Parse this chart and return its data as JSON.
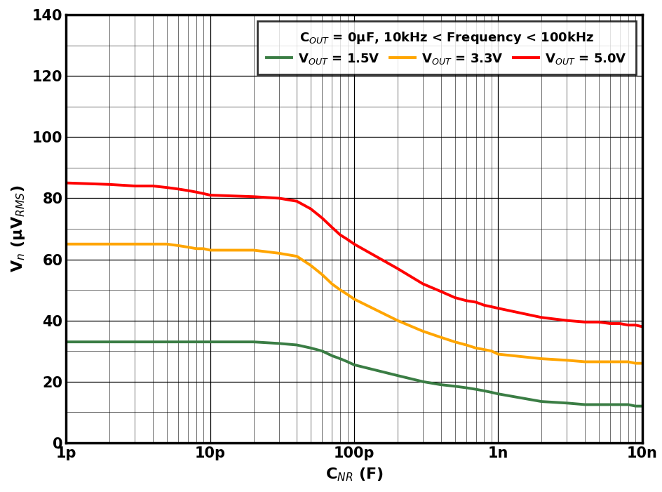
{
  "xmin": 1e-12,
  "xmax": 1e-08,
  "ymin": 0,
  "ymax": 140,
  "yticks": [
    0,
    20,
    40,
    60,
    80,
    100,
    120,
    140
  ],
  "xtick_positions": [
    1e-12,
    1e-11,
    1e-10,
    1e-09,
    1e-08
  ],
  "xtick_labels": [
    "1p",
    "10p",
    "100p",
    "1n",
    "10n"
  ],
  "color_15V": "#3a7d44",
  "color_33V": "#ffa500",
  "color_50V": "#ff0000",
  "line_width": 2.8,
  "bg_color": "#ffffff",
  "xlabel": "C$_{NR}$ (F)",
  "ylabel": "V$_{n}$ (μV$_{RMS}$)",
  "legend_title": "C$_{OUT}$ = 0μF, 10kHz < Frequency < 100kHz",
  "legend_labels": [
    "V$_{OUT}$ = 1.5V",
    "V$_{OUT}$ = 3.3V",
    "V$_{OUT}$ = 5.0V"
  ],
  "curve_1p5V": {
    "x": [
      1e-12,
      2e-12,
      3e-12,
      4e-12,
      5e-12,
      6e-12,
      7e-12,
      8e-12,
      9e-12,
      1e-11,
      2e-11,
      3e-11,
      4e-11,
      5e-11,
      6e-11,
      7e-11,
      8e-11,
      9e-11,
      1e-10,
      2e-10,
      3e-10,
      4e-10,
      5e-10,
      6e-10,
      7e-10,
      8e-10,
      9e-10,
      1e-09,
      2e-09,
      3e-09,
      4e-09,
      5e-09,
      6e-09,
      7e-09,
      8e-09,
      9e-09,
      1e-08
    ],
    "y": [
      33.0,
      33.0,
      33.0,
      33.0,
      33.0,
      33.0,
      33.0,
      33.0,
      33.0,
      33.0,
      33.0,
      32.5,
      32.0,
      31.0,
      30.0,
      28.5,
      27.5,
      26.5,
      25.5,
      22.0,
      20.0,
      19.0,
      18.5,
      18.0,
      17.5,
      17.0,
      16.5,
      16.0,
      13.5,
      13.0,
      12.5,
      12.5,
      12.5,
      12.5,
      12.5,
      12.0,
      12.0
    ]
  },
  "curve_3p3V": {
    "x": [
      1e-12,
      2e-12,
      3e-12,
      4e-12,
      5e-12,
      6e-12,
      7e-12,
      8e-12,
      9e-12,
      1e-11,
      2e-11,
      3e-11,
      4e-11,
      5e-11,
      6e-11,
      7e-11,
      8e-11,
      9e-11,
      1e-10,
      2e-10,
      3e-10,
      4e-10,
      5e-10,
      6e-10,
      7e-10,
      8e-10,
      9e-10,
      1e-09,
      2e-09,
      3e-09,
      4e-09,
      5e-09,
      6e-09,
      7e-09,
      8e-09,
      9e-09,
      1e-08
    ],
    "y": [
      65.0,
      65.0,
      65.0,
      65.0,
      65.0,
      64.5,
      64.0,
      63.5,
      63.5,
      63.0,
      63.0,
      62.0,
      61.0,
      58.0,
      55.0,
      52.0,
      50.0,
      48.5,
      47.0,
      40.0,
      36.5,
      34.5,
      33.0,
      32.0,
      31.0,
      30.5,
      30.0,
      29.0,
      27.5,
      27.0,
      26.5,
      26.5,
      26.5,
      26.5,
      26.5,
      26.0,
      26.0
    ]
  },
  "curve_5p0V": {
    "x": [
      1e-12,
      2e-12,
      3e-12,
      4e-12,
      5e-12,
      6e-12,
      7e-12,
      8e-12,
      9e-12,
      1e-11,
      2e-11,
      3e-11,
      4e-11,
      5e-11,
      6e-11,
      7e-11,
      8e-11,
      9e-11,
      1e-10,
      2e-10,
      3e-10,
      4e-10,
      5e-10,
      6e-10,
      7e-10,
      8e-10,
      9e-10,
      1e-09,
      2e-09,
      3e-09,
      4e-09,
      5e-09,
      6e-09,
      7e-09,
      8e-09,
      9e-09,
      1e-08
    ],
    "y": [
      85.0,
      84.5,
      84.0,
      84.0,
      83.5,
      83.0,
      82.5,
      82.0,
      81.5,
      81.0,
      80.5,
      80.0,
      79.0,
      76.5,
      73.5,
      70.5,
      68.0,
      66.5,
      65.0,
      57.0,
      52.0,
      49.5,
      47.5,
      46.5,
      46.0,
      45.0,
      44.5,
      44.0,
      41.0,
      40.0,
      39.5,
      39.5,
      39.0,
      39.0,
      38.5,
      38.5,
      38.0
    ]
  }
}
